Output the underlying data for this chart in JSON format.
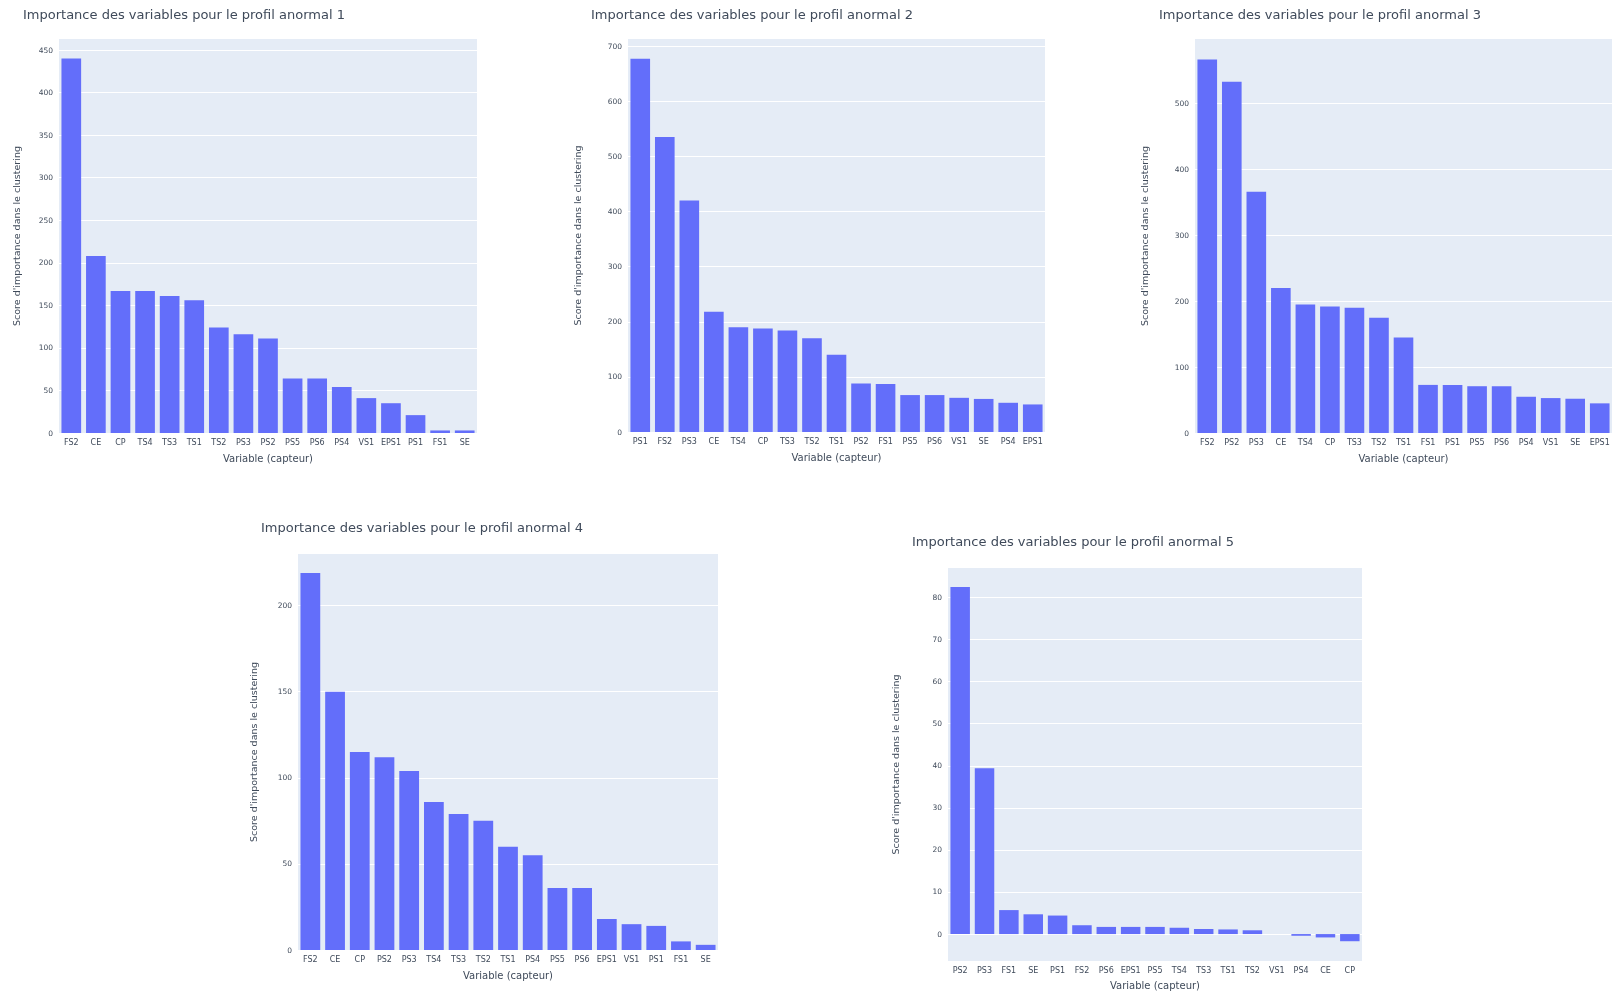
{
  "chart_data": [
    {
      "type": "bar",
      "title": "Importance des variables pour le profil anormal 1",
      "xlabel": "Variable (capteur)",
      "ylabel": "Score d'importance dans le clustering",
      "categories": [
        "FS2",
        "CE",
        "CP",
        "TS4",
        "TS3",
        "TS1",
        "TS2",
        "PS3",
        "PS2",
        "PS5",
        "PS6",
        "PS4",
        "VS1",
        "EPS1",
        "PS1",
        "FS1",
        "SE"
      ],
      "values": [
        440,
        208,
        167,
        167,
        161,
        156,
        124,
        116,
        111,
        64,
        64,
        54,
        41,
        35,
        21,
        3,
        3
      ],
      "color": "#636efa",
      "ylim": [
        0,
        463
      ],
      "yticks": [
        0,
        50,
        100,
        150,
        200,
        250,
        300,
        350,
        400,
        450
      ],
      "grid": "y"
    },
    {
      "type": "bar",
      "title": "Importance des variables pour le profil anormal 2",
      "xlabel": "Variable (capteur)",
      "ylabel": "Score d'importance dans le clustering",
      "categories": [
        "PS1",
        "FS2",
        "PS3",
        "CE",
        "TS4",
        "CP",
        "TS3",
        "TS2",
        "TS1",
        "PS2",
        "FS1",
        "PS5",
        "PS6",
        "VS1",
        "SE",
        "PS4",
        "EPS1"
      ],
      "values": [
        677,
        535,
        420,
        218,
        190,
        188,
        184,
        170,
        140,
        88,
        87,
        67,
        67,
        62,
        60,
        53,
        50
      ],
      "color": "#636efa",
      "ylim": [
        0,
        713
      ],
      "yticks": [
        0,
        100,
        200,
        300,
        400,
        500,
        600,
        700
      ],
      "grid": "y"
    },
    {
      "type": "bar",
      "title": "Importance des variables pour le profil anormal 3",
      "xlabel": "Variable (capteur)",
      "ylabel": "Score d'importance dans le clustering",
      "categories": [
        "FS2",
        "PS2",
        "PS3",
        "CE",
        "TS4",
        "CP",
        "TS3",
        "TS2",
        "TS1",
        "FS1",
        "PS1",
        "PS5",
        "PS6",
        "PS4",
        "VS1",
        "SE",
        "EPS1"
      ],
      "values": [
        567,
        533,
        366,
        220,
        195,
        192,
        190,
        175,
        145,
        73,
        73,
        71,
        71,
        55,
        53,
        52,
        45
      ],
      "color": "#636efa",
      "ylim": [
        0,
        598
      ],
      "yticks": [
        0,
        100,
        200,
        300,
        400,
        500
      ],
      "grid": "y"
    },
    {
      "type": "bar",
      "title": "Importance des variables pour le profil anormal 4",
      "xlabel": "Variable (capteur)",
      "ylabel": "Score d'importance dans le clustering",
      "categories": [
        "FS2",
        "CE",
        "CP",
        "PS2",
        "PS3",
        "TS4",
        "TS3",
        "TS2",
        "TS1",
        "PS4",
        "PS5",
        "PS6",
        "EPS1",
        "VS1",
        "PS1",
        "FS1",
        "SE"
      ],
      "values": [
        219,
        150,
        115,
        112,
        104,
        86,
        79,
        75,
        60,
        55,
        36,
        36,
        18,
        15,
        14,
        5,
        3
      ],
      "color": "#636efa",
      "ylim": [
        0,
        230
      ],
      "yticks": [
        0,
        50,
        100,
        150,
        200
      ],
      "grid": "y"
    },
    {
      "type": "bar",
      "title": "Importance des variables pour le profil anormal 5",
      "xlabel": "Variable (capteur)",
      "ylabel": "Score d'importance dans le clustering",
      "categories": [
        "PS2",
        "PS3",
        "FS1",
        "SE",
        "PS1",
        "FS2",
        "PS6",
        "EPS1",
        "PS5",
        "TS4",
        "TS3",
        "TS1",
        "TS2",
        "VS1",
        "PS4",
        "CE",
        "CP"
      ],
      "values": [
        82.5,
        39.4,
        5.7,
        4.7,
        4.4,
        2.1,
        1.7,
        1.7,
        1.7,
        1.5,
        1.2,
        1.1,
        0.9,
        0,
        -0.4,
        -0.8,
        -1.7
      ],
      "color": "#636efa",
      "ylim": [
        -6.4,
        87
      ],
      "yticks": [
        0,
        10,
        20,
        30,
        40,
        50,
        60,
        70,
        80
      ],
      "grid": "y"
    }
  ]
}
